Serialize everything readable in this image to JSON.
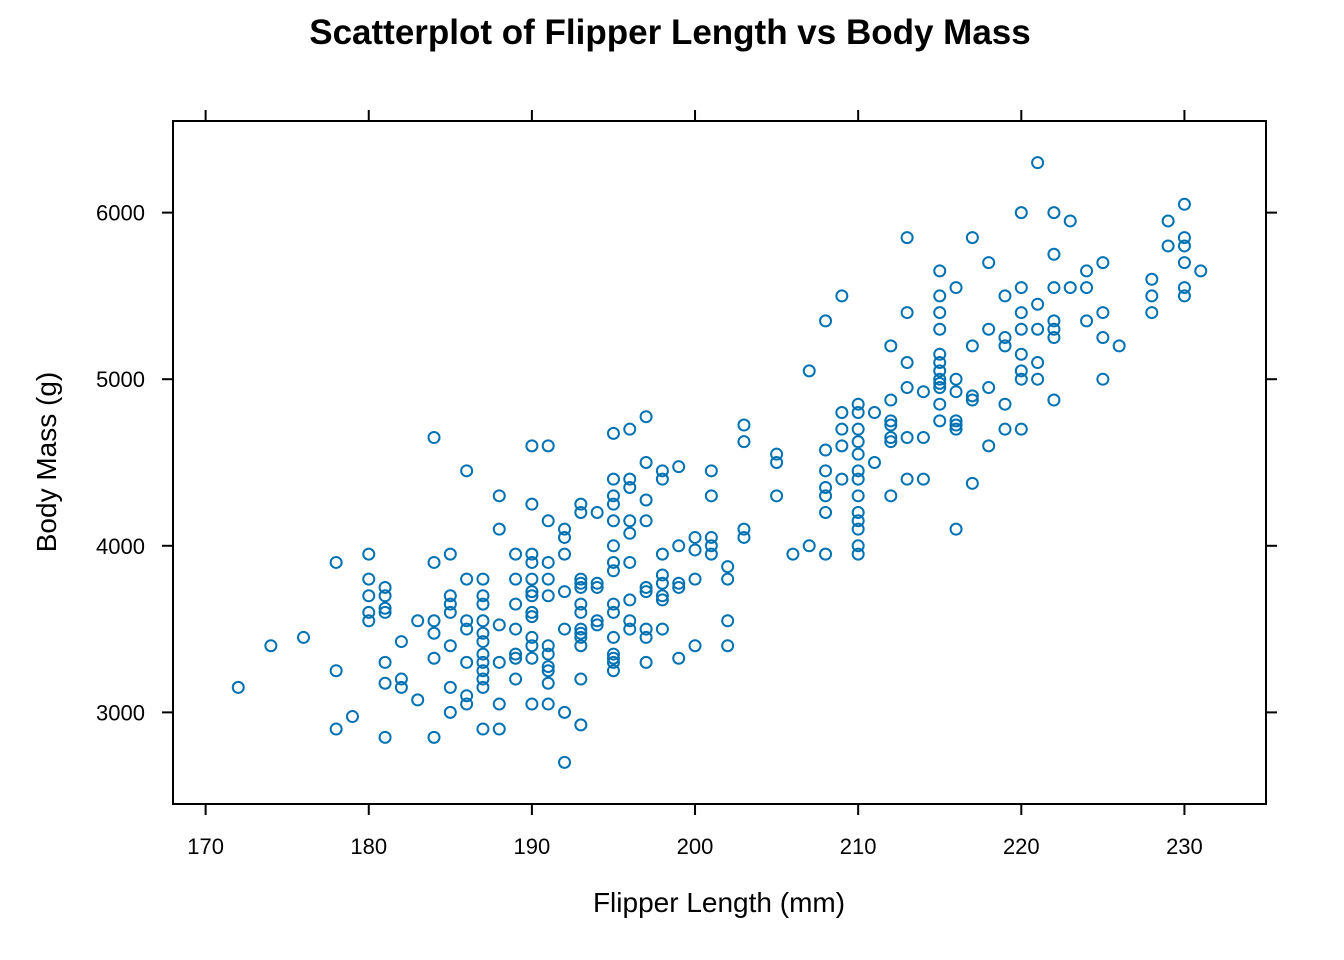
{
  "chart_data": {
    "type": "scatter",
    "title": "Scatterplot of Flipper Length vs Body Mass",
    "xlabel": "Flipper Length (mm)",
    "ylabel": "Body Mass (g)",
    "xlim": [
      168,
      235
    ],
    "ylim": [
      2450,
      6550
    ],
    "xticks": [
      "170",
      "180",
      "190",
      "200",
      "210",
      "220",
      "230"
    ],
    "yticks": [
      "3000",
      "4000",
      "5000",
      "6000"
    ],
    "grid": false,
    "legend": "none",
    "marker": "open-circle",
    "color": "#0072B2",
    "points": [
      [
        172,
        3150
      ],
      [
        174,
        3400
      ],
      [
        176,
        3450
      ],
      [
        178,
        3250
      ],
      [
        178,
        3900
      ],
      [
        178,
        2900
      ],
      [
        179,
        2975
      ],
      [
        180,
        3950
      ],
      [
        180,
        3800
      ],
      [
        180,
        3700
      ],
      [
        180,
        3600
      ],
      [
        180,
        3550
      ],
      [
        181,
        3750
      ],
      [
        181,
        3700
      ],
      [
        181,
        3625
      ],
      [
        181,
        3600
      ],
      [
        181,
        3300
      ],
      [
        181,
        3175
      ],
      [
        181,
        2850
      ],
      [
        182,
        3425
      ],
      [
        182,
        3200
      ],
      [
        182,
        3150
      ],
      [
        183,
        3550
      ],
      [
        183,
        3075
      ],
      [
        184,
        4650
      ],
      [
        184,
        3900
      ],
      [
        184,
        3550
      ],
      [
        184,
        3475
      ],
      [
        184,
        3325
      ],
      [
        184,
        2850
      ],
      [
        185,
        3950
      ],
      [
        185,
        3700
      ],
      [
        185,
        3650
      ],
      [
        185,
        3600
      ],
      [
        185,
        3400
      ],
      [
        185,
        3150
      ],
      [
        185,
        3000
      ],
      [
        186,
        4450
      ],
      [
        186,
        3800
      ],
      [
        186,
        3550
      ],
      [
        186,
        3500
      ],
      [
        186,
        3300
      ],
      [
        186,
        3100
      ],
      [
        186,
        3050
      ],
      [
        187,
        3800
      ],
      [
        187,
        3700
      ],
      [
        187,
        3650
      ],
      [
        187,
        3550
      ],
      [
        187,
        3475
      ],
      [
        187,
        3425
      ],
      [
        187,
        3350
      ],
      [
        187,
        3300
      ],
      [
        187,
        3250
      ],
      [
        187,
        3200
      ],
      [
        187,
        3150
      ],
      [
        187,
        2900
      ],
      [
        188,
        4300
      ],
      [
        188,
        4100
      ],
      [
        188,
        3525
      ],
      [
        188,
        3300
      ],
      [
        188,
        3050
      ],
      [
        188,
        2900
      ],
      [
        189,
        3950
      ],
      [
        189,
        3800
      ],
      [
        189,
        3650
      ],
      [
        189,
        3500
      ],
      [
        189,
        3350
      ],
      [
        189,
        3325
      ],
      [
        189,
        3200
      ],
      [
        190,
        4600
      ],
      [
        190,
        4250
      ],
      [
        190,
        3950
      ],
      [
        190,
        3900
      ],
      [
        190,
        3800
      ],
      [
        190,
        3725
      ],
      [
        190,
        3700
      ],
      [
        190,
        3600
      ],
      [
        190,
        3575
      ],
      [
        190,
        3450
      ],
      [
        190,
        3400
      ],
      [
        190,
        3325
      ],
      [
        190,
        3050
      ],
      [
        191,
        4600
      ],
      [
        191,
        4150
      ],
      [
        191,
        3900
      ],
      [
        191,
        3800
      ],
      [
        191,
        3700
      ],
      [
        191,
        3400
      ],
      [
        191,
        3350
      ],
      [
        191,
        3275
      ],
      [
        191,
        3250
      ],
      [
        191,
        3175
      ],
      [
        191,
        3050
      ],
      [
        192,
        4100
      ],
      [
        192,
        4050
      ],
      [
        192,
        3950
      ],
      [
        192,
        3725
      ],
      [
        192,
        3500
      ],
      [
        192,
        3000
      ],
      [
        192,
        2700
      ],
      [
        193,
        4250
      ],
      [
        193,
        4200
      ],
      [
        193,
        3800
      ],
      [
        193,
        3775
      ],
      [
        193,
        3750
      ],
      [
        193,
        3650
      ],
      [
        193,
        3600
      ],
      [
        193,
        3500
      ],
      [
        193,
        3475
      ],
      [
        193,
        3450
      ],
      [
        193,
        3400
      ],
      [
        193,
        3200
      ],
      [
        193,
        2925
      ],
      [
        194,
        4200
      ],
      [
        194,
        3775
      ],
      [
        194,
        3750
      ],
      [
        194,
        3550
      ],
      [
        194,
        3525
      ],
      [
        195,
        4675
      ],
      [
        195,
        4400
      ],
      [
        195,
        4300
      ],
      [
        195,
        4250
      ],
      [
        195,
        4150
      ],
      [
        195,
        4000
      ],
      [
        195,
        3900
      ],
      [
        195,
        3850
      ],
      [
        195,
        3650
      ],
      [
        195,
        3600
      ],
      [
        195,
        3450
      ],
      [
        195,
        3350
      ],
      [
        195,
        3325
      ],
      [
        195,
        3300
      ],
      [
        195,
        3250
      ],
      [
        196,
        4700
      ],
      [
        196,
        4400
      ],
      [
        196,
        4350
      ],
      [
        196,
        4150
      ],
      [
        196,
        4075
      ],
      [
        196,
        3900
      ],
      [
        196,
        3675
      ],
      [
        196,
        3550
      ],
      [
        196,
        3500
      ],
      [
        197,
        4775
      ],
      [
        197,
        4500
      ],
      [
        197,
        4275
      ],
      [
        197,
        4150
      ],
      [
        197,
        3750
      ],
      [
        197,
        3725
      ],
      [
        197,
        3500
      ],
      [
        197,
        3450
      ],
      [
        197,
        3300
      ],
      [
        198,
        4450
      ],
      [
        198,
        4400
      ],
      [
        198,
        3950
      ],
      [
        198,
        3825
      ],
      [
        198,
        3775
      ],
      [
        198,
        3700
      ],
      [
        198,
        3675
      ],
      [
        198,
        3500
      ],
      [
        199,
        4475
      ],
      [
        199,
        4000
      ],
      [
        199,
        3775
      ],
      [
        199,
        3750
      ],
      [
        199,
        3325
      ],
      [
        200,
        4050
      ],
      [
        200,
        3975
      ],
      [
        200,
        3800
      ],
      [
        200,
        3400
      ],
      [
        201,
        4450
      ],
      [
        201,
        4300
      ],
      [
        201,
        4050
      ],
      [
        201,
        4000
      ],
      [
        201,
        3950
      ],
      [
        202,
        3875
      ],
      [
        202,
        3800
      ],
      [
        202,
        3550
      ],
      [
        202,
        3400
      ],
      [
        203,
        4725
      ],
      [
        203,
        4625
      ],
      [
        203,
        4100
      ],
      [
        203,
        4050
      ],
      [
        205,
        4550
      ],
      [
        205,
        4500
      ],
      [
        205,
        4300
      ],
      [
        206,
        3950
      ],
      [
        207,
        5050
      ],
      [
        207,
        4000
      ],
      [
        208,
        5350
      ],
      [
        208,
        4575
      ],
      [
        208,
        4450
      ],
      [
        208,
        4350
      ],
      [
        208,
        4300
      ],
      [
        208,
        4200
      ],
      [
        208,
        3950
      ],
      [
        209,
        5500
      ],
      [
        209,
        4800
      ],
      [
        209,
        4700
      ],
      [
        209,
        4600
      ],
      [
        209,
        4400
      ],
      [
        210,
        4850
      ],
      [
        210,
        4800
      ],
      [
        210,
        4700
      ],
      [
        210,
        4625
      ],
      [
        210,
        4550
      ],
      [
        210,
        4450
      ],
      [
        210,
        4400
      ],
      [
        210,
        4300
      ],
      [
        210,
        4200
      ],
      [
        210,
        4150
      ],
      [
        210,
        4100
      ],
      [
        210,
        4000
      ],
      [
        210,
        3950
      ],
      [
        211,
        4800
      ],
      [
        211,
        4500
      ],
      [
        212,
        5200
      ],
      [
        212,
        4875
      ],
      [
        212,
        4750
      ],
      [
        212,
        4725
      ],
      [
        212,
        4650
      ],
      [
        212,
        4625
      ],
      [
        212,
        4300
      ],
      [
        213,
        5850
      ],
      [
        213,
        5400
      ],
      [
        213,
        5100
      ],
      [
        213,
        4950
      ],
      [
        213,
        4650
      ],
      [
        213,
        4400
      ],
      [
        214,
        4925
      ],
      [
        214,
        4650
      ],
      [
        214,
        4400
      ],
      [
        215,
        5650
      ],
      [
        215,
        5500
      ],
      [
        215,
        5400
      ],
      [
        215,
        5300
      ],
      [
        215,
        5150
      ],
      [
        215,
        5100
      ],
      [
        215,
        5050
      ],
      [
        215,
        5000
      ],
      [
        215,
        4975
      ],
      [
        215,
        4950
      ],
      [
        215,
        4850
      ],
      [
        215,
        4750
      ],
      [
        216,
        5550
      ],
      [
        216,
        5000
      ],
      [
        216,
        4925
      ],
      [
        216,
        4750
      ],
      [
        216,
        4725
      ],
      [
        216,
        4700
      ],
      [
        216,
        4100
      ],
      [
        217,
        5850
      ],
      [
        217,
        5200
      ],
      [
        217,
        4900
      ],
      [
        217,
        4875
      ],
      [
        217,
        4375
      ],
      [
        218,
        5700
      ],
      [
        218,
        5300
      ],
      [
        218,
        4950
      ],
      [
        218,
        4600
      ],
      [
        219,
        5500
      ],
      [
        219,
        5250
      ],
      [
        219,
        5200
      ],
      [
        219,
        4850
      ],
      [
        219,
        4700
      ],
      [
        220,
        6000
      ],
      [
        220,
        5550
      ],
      [
        220,
        5400
      ],
      [
        220,
        5300
      ],
      [
        220,
        5150
      ],
      [
        220,
        5050
      ],
      [
        220,
        5000
      ],
      [
        220,
        4700
      ],
      [
        221,
        6300
      ],
      [
        221,
        5450
      ],
      [
        221,
        5300
      ],
      [
        221,
        5100
      ],
      [
        221,
        5000
      ],
      [
        222,
        6000
      ],
      [
        222,
        5750
      ],
      [
        222,
        5550
      ],
      [
        222,
        5350
      ],
      [
        222,
        5300
      ],
      [
        222,
        5250
      ],
      [
        222,
        4875
      ],
      [
        223,
        5950
      ],
      [
        223,
        5550
      ],
      [
        224,
        5650
      ],
      [
        224,
        5550
      ],
      [
        224,
        5350
      ],
      [
        225,
        5700
      ],
      [
        225,
        5400
      ],
      [
        225,
        5250
      ],
      [
        225,
        5000
      ],
      [
        226,
        5200
      ],
      [
        228,
        5600
      ],
      [
        228,
        5500
      ],
      [
        228,
        5400
      ],
      [
        229,
        5950
      ],
      [
        229,
        5800
      ],
      [
        230,
        6050
      ],
      [
        230,
        5850
      ],
      [
        230,
        5800
      ],
      [
        230,
        5700
      ],
      [
        230,
        5550
      ],
      [
        230,
        5500
      ],
      [
        231,
        5650
      ]
    ]
  }
}
